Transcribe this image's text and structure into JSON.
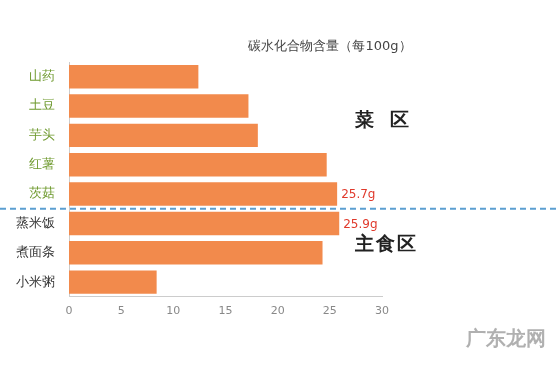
{
  "chart_data": {
    "type": "bar",
    "orientation": "horizontal",
    "title": "碳水化合物含量（每100g）",
    "categories": [
      "山药",
      "土豆",
      "芋头",
      "红薯",
      "茨菇",
      "蒸米饭",
      "煮面条",
      "小米粥"
    ],
    "values": [
      12.4,
      17.2,
      18.1,
      24.7,
      25.7,
      25.9,
      24.3,
      8.4
    ],
    "data_labels": true,
    "value_labels": [
      null,
      null,
      null,
      null,
      "25.7g",
      "25.9g",
      null,
      null
    ],
    "color": "#f28a4c",
    "xlim": [
      0,
      30
    ],
    "xticks": [
      0,
      5,
      10,
      15,
      20,
      25,
      30
    ],
    "grid": false,
    "groups": [
      {
        "name": "菜区",
        "categories": [
          "山药",
          "土豆",
          "芋头",
          "红薯",
          "茨菇"
        ]
      },
      {
        "name": "主食区",
        "categories": [
          "蒸米饭",
          "煮面条",
          "小米粥"
        ]
      }
    ],
    "watermark": "广东龙网"
  }
}
